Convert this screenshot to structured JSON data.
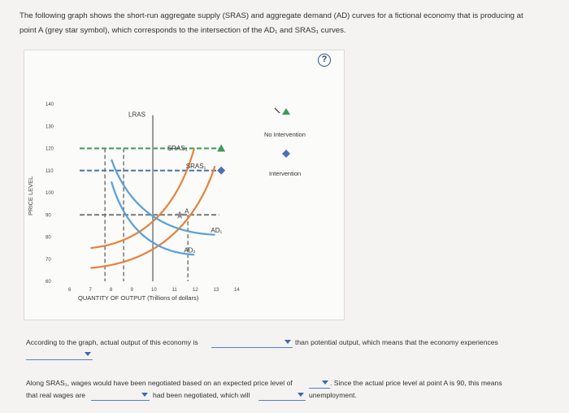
{
  "intro": {
    "line1": "The following graph shows the short-run aggregate supply (SRAS) and aggregate demand (AD) curves for a fictional economy that is producing at",
    "line2": "point A (grey star symbol), which corresponds to the intersection of the AD₁ and SRAS₁ curves."
  },
  "help_label": "?",
  "chart_data": {
    "type": "line",
    "ylabel": "PRICE LEVEL",
    "xlabel": "QUANTITY OF OUTPUT (Trillions of dollars)",
    "xlim": [
      6,
      14
    ],
    "ylim": [
      60,
      140
    ],
    "x_ticks": [
      "6",
      "7",
      "8",
      "9",
      "10",
      "11",
      "12",
      "13",
      "14"
    ],
    "y_ticks": [
      "140",
      "130",
      "120",
      "110",
      "100",
      "90",
      "80",
      "70",
      "60"
    ],
    "series": [
      {
        "name": "LRAS",
        "x": [
          10,
          10
        ],
        "y": [
          60,
          135
        ],
        "color": "#9a9a9a"
      },
      {
        "name": "SRAS₂",
        "x": [
          7,
          12
        ],
        "y": [
          75,
          120
        ],
        "color": "#e8823a"
      },
      {
        "name": "SRAS₁",
        "x": [
          7,
          13
        ],
        "y": [
          66,
          112
        ],
        "color": "#e8823a"
      },
      {
        "name": "AD₁",
        "x": [
          8,
          13
        ],
        "y": [
          115,
          81
        ],
        "color": "#5aa0d8"
      },
      {
        "name": "AD₂",
        "x": [
          8,
          12
        ],
        "y": [
          105,
          72
        ],
        "color": "#5aa0d8"
      }
    ],
    "point_A": {
      "label": "A",
      "x": 11.3,
      "y": 90
    },
    "guide_levels": [
      120,
      110,
      90
    ],
    "markers": {
      "no_intervention": {
        "x": 13.3,
        "y": 120,
        "shape": "triangle"
      },
      "intervention": {
        "x": 13.3,
        "y": 110,
        "shape": "diamond"
      }
    },
    "legend": {
      "no_intervention": "No Intervention",
      "intervention": "Intervention"
    }
  },
  "question": {
    "part1_prefix": "According to the graph, actual output of this economy is",
    "part1_suffix": "than potential output, which means that the economy experiences",
    "part2_prefix": "Along SRAS₁, wages would have been negotiated based on an expected price level of",
    "part2_middle": ". Since the actual price level at point A is 90, this means",
    "part2_line2_prefix": "that real wages are",
    "part2_line2_middle": "had been negotiated, which will",
    "part2_line2_suffix": "unemployment."
  },
  "colors": {
    "lras": "#9a9a9a",
    "sras": "#e8823a",
    "ad": "#5aa0d8",
    "guide_green": "#3b9a5a",
    "guide_blue": "#4d6fb5",
    "dropdown": "#3f66b5"
  }
}
